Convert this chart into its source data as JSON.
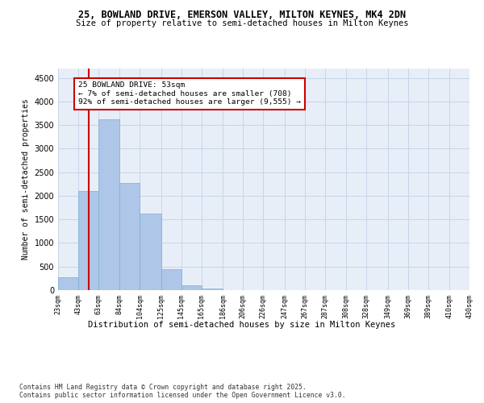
{
  "title1": "25, BOWLAND DRIVE, EMERSON VALLEY, MILTON KEYNES, MK4 2DN",
  "title2": "Size of property relative to semi-detached houses in Milton Keynes",
  "xlabel": "Distribution of semi-detached houses by size in Milton Keynes",
  "ylabel": "Number of semi-detached properties",
  "footer": "Contains HM Land Registry data © Crown copyright and database right 2025.\nContains public sector information licensed under the Open Government Licence v3.0.",
  "annotation_title": "25 BOWLAND DRIVE: 53sqm",
  "annotation_line1": "← 7% of semi-detached houses are smaller (708)",
  "annotation_line2": "92% of semi-detached houses are larger (9,555) →",
  "property_size": 53,
  "bar_color": "#aec6e8",
  "bar_edge_color": "#7aafd4",
  "redline_color": "#cc0000",
  "annotation_box_color": "#cc0000",
  "background_color": "#ffffff",
  "axes_bg_color": "#e8eef8",
  "grid_color": "#c8d4e8",
  "categories": [
    "23sqm",
    "43sqm",
    "63sqm",
    "84sqm",
    "104sqm",
    "125sqm",
    "145sqm",
    "165sqm",
    "186sqm",
    "206sqm",
    "226sqm",
    "247sqm",
    "267sqm",
    "287sqm",
    "308sqm",
    "328sqm",
    "349sqm",
    "369sqm",
    "389sqm",
    "410sqm",
    "430sqm"
  ],
  "bin_edges": [
    23,
    43,
    63,
    84,
    104,
    125,
    145,
    165,
    186,
    206,
    226,
    247,
    267,
    287,
    308,
    328,
    349,
    369,
    389,
    410,
    430
  ],
  "values": [
    270,
    2100,
    3620,
    2280,
    1620,
    450,
    100,
    30,
    0,
    0,
    0,
    0,
    0,
    0,
    0,
    0,
    0,
    0,
    0,
    0
  ],
  "ylim": [
    0,
    4700
  ],
  "yticks": [
    0,
    500,
    1000,
    1500,
    2000,
    2500,
    3000,
    3500,
    4000,
    4500
  ]
}
